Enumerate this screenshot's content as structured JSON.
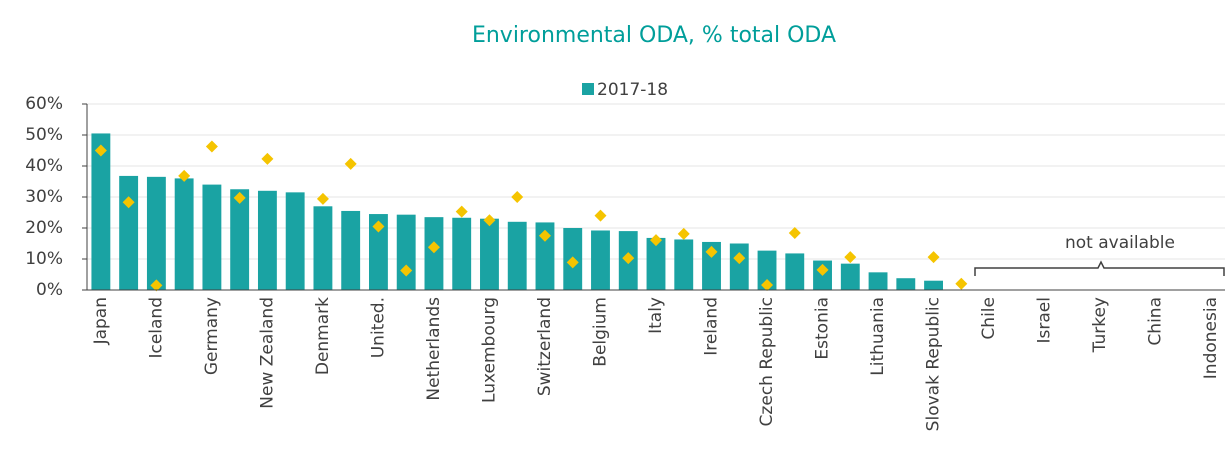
{
  "chart_data": {
    "type": "bar",
    "title": "Environmental ODA, % total ODA",
    "categories": [
      "Japan",
      null,
      "Iceland",
      null,
      "Germany",
      null,
      "New Zealand",
      null,
      "Denmark",
      null,
      "United.",
      null,
      "Netherlands",
      null,
      "Luxembourg",
      null,
      "Switzerland",
      null,
      "Belgium",
      null,
      "Italy",
      null,
      "Ireland",
      null,
      "Czech Republic",
      null,
      "Estonia",
      null,
      "Lithuania",
      null,
      "Slovak Republic",
      null,
      "Chile",
      null,
      "Israel",
      null,
      "Turkey",
      null,
      "China",
      null,
      "Indonesia"
    ],
    "series": [
      {
        "name": "2017-18",
        "color": "#1aa3a3",
        "values": [
          50.5,
          36.8,
          36.5,
          36,
          34,
          32.5,
          32,
          31.5,
          27,
          25.5,
          24.5,
          24.3,
          23.5,
          23.3,
          23,
          22,
          21.8,
          20,
          19.2,
          19,
          16.8,
          16.3,
          15.5,
          15,
          12.7,
          11.8,
          9.5,
          8.5,
          5.7,
          3.8,
          3,
          null,
          null,
          null,
          null,
          null,
          null,
          null,
          null,
          null,
          null
        ]
      },
      {
        "type": "scatter",
        "color": "#f5c400",
        "values": [
          45,
          28.3,
          1.5,
          36.8,
          46.3,
          29.7,
          42.3,
          null,
          29.4,
          40.7,
          20.5,
          6.3,
          13.8,
          25.3,
          22.5,
          30,
          17.5,
          8.9,
          24,
          10.3,
          16.1,
          18.1,
          12.3,
          10.3,
          1.6,
          18.4,
          6.5,
          10.6,
          null,
          null,
          10.6,
          2,
          null,
          null,
          null,
          null,
          null,
          null,
          null,
          null,
          null
        ]
      }
    ],
    "ylim": [
      0,
      60
    ],
    "yticks": [
      {
        "value": 0,
        "label": "0%"
      },
      {
        "value": 10,
        "label": "10%"
      },
      {
        "value": 20,
        "label": "20%"
      },
      {
        "value": 30,
        "label": "30%"
      },
      {
        "value": 40,
        "label": "40%"
      },
      {
        "value": 50,
        "label": "50%"
      },
      {
        "value": 60,
        "label": "60%"
      }
    ],
    "grid": true,
    "legend": "top",
    "annotation": "not available"
  }
}
